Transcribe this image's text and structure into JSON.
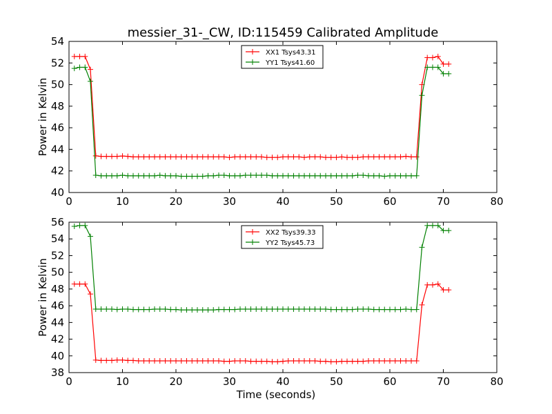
{
  "title": "messier_31-_CW, ID:115459 Calibrated Amplitude",
  "colors": {
    "red": "#ff0000",
    "green": "#008000",
    "axis": "#000000"
  },
  "chart_data": [
    {
      "type": "line",
      "ylabel": "Power in Kelvin",
      "xlabel": "",
      "xlim": [
        0,
        80
      ],
      "ylim": [
        40,
        54
      ],
      "x_ticks": [
        0,
        10,
        20,
        30,
        40,
        50,
        60,
        70,
        80
      ],
      "y_ticks": [
        40,
        42,
        44,
        46,
        48,
        50,
        52,
        54
      ],
      "grid": false,
      "legend_position": "top-center",
      "x": [
        1,
        2,
        3,
        4,
        5,
        6,
        7,
        8,
        9,
        10,
        11,
        12,
        13,
        14,
        15,
        16,
        17,
        18,
        19,
        20,
        21,
        22,
        23,
        24,
        25,
        26,
        27,
        28,
        29,
        30,
        31,
        32,
        33,
        34,
        35,
        36,
        37,
        38,
        39,
        40,
        41,
        42,
        43,
        44,
        45,
        46,
        47,
        48,
        49,
        50,
        51,
        52,
        53,
        54,
        55,
        56,
        57,
        58,
        59,
        60,
        61,
        62,
        63,
        64,
        65,
        66,
        67,
        68,
        69,
        70,
        71
      ],
      "series": [
        {
          "name": "XX1 Tsys43.31",
          "color": "#ff0000",
          "values": [
            52.6,
            52.6,
            52.6,
            51.4,
            43.4,
            43.35,
            43.35,
            43.35,
            43.35,
            43.38,
            43.35,
            43.3,
            43.3,
            43.3,
            43.3,
            43.3,
            43.3,
            43.3,
            43.3,
            43.3,
            43.3,
            43.3,
            43.3,
            43.3,
            43.3,
            43.3,
            43.3,
            43.3,
            43.3,
            43.25,
            43.3,
            43.3,
            43.3,
            43.3,
            43.3,
            43.3,
            43.25,
            43.25,
            43.25,
            43.3,
            43.3,
            43.3,
            43.3,
            43.25,
            43.3,
            43.3,
            43.3,
            43.25,
            43.25,
            43.25,
            43.3,
            43.25,
            43.25,
            43.25,
            43.3,
            43.3,
            43.3,
            43.3,
            43.3,
            43.3,
            43.3,
            43.3,
            43.35,
            43.3,
            43.3,
            50.0,
            52.5,
            52.5,
            52.6,
            51.9,
            51.9
          ]
        },
        {
          "name": "YY1 Tsys41.60",
          "color": "#008000",
          "values": [
            51.5,
            51.6,
            51.6,
            50.3,
            41.6,
            41.55,
            41.55,
            41.55,
            41.55,
            41.6,
            41.55,
            41.55,
            41.55,
            41.55,
            41.55,
            41.55,
            41.6,
            41.55,
            41.55,
            41.55,
            41.5,
            41.5,
            41.5,
            41.5,
            41.5,
            41.55,
            41.55,
            41.6,
            41.6,
            41.55,
            41.55,
            41.55,
            41.6,
            41.6,
            41.6,
            41.6,
            41.6,
            41.55,
            41.55,
            41.55,
            41.55,
            41.55,
            41.55,
            41.55,
            41.55,
            41.55,
            41.55,
            41.55,
            41.55,
            41.55,
            41.55,
            41.55,
            41.55,
            41.6,
            41.6,
            41.55,
            41.55,
            41.55,
            41.5,
            41.55,
            41.55,
            41.55,
            41.55,
            41.55,
            41.55,
            49.0,
            51.6,
            51.6,
            51.6,
            51.0,
            51.0
          ]
        }
      ]
    },
    {
      "type": "line",
      "ylabel": "Power in Kelvin",
      "xlabel": "Time (seconds)",
      "xlim": [
        0,
        80
      ],
      "ylim": [
        38,
        56
      ],
      "x_ticks": [
        0,
        10,
        20,
        30,
        40,
        50,
        60,
        70,
        80
      ],
      "y_ticks": [
        38,
        40,
        42,
        44,
        46,
        48,
        50,
        52,
        54,
        56
      ],
      "grid": false,
      "legend_position": "top-center",
      "x": [
        1,
        2,
        3,
        4,
        5,
        6,
        7,
        8,
        9,
        10,
        11,
        12,
        13,
        14,
        15,
        16,
        17,
        18,
        19,
        20,
        21,
        22,
        23,
        24,
        25,
        26,
        27,
        28,
        29,
        30,
        31,
        32,
        33,
        34,
        35,
        36,
        37,
        38,
        39,
        40,
        41,
        42,
        43,
        44,
        45,
        46,
        47,
        48,
        49,
        50,
        51,
        52,
        53,
        54,
        55,
        56,
        57,
        58,
        59,
        60,
        61,
        62,
        63,
        64,
        65,
        66,
        67,
        68,
        69,
        70,
        71
      ],
      "series": [
        {
          "name": "XX2 Tsys39.33",
          "color": "#ff0000",
          "values": [
            48.6,
            48.6,
            48.6,
            47.4,
            39.5,
            39.45,
            39.45,
            39.45,
            39.5,
            39.5,
            39.45,
            39.45,
            39.4,
            39.4,
            39.4,
            39.4,
            39.4,
            39.4,
            39.4,
            39.4,
            39.4,
            39.4,
            39.4,
            39.4,
            39.4,
            39.4,
            39.4,
            39.4,
            39.35,
            39.35,
            39.4,
            39.4,
            39.4,
            39.35,
            39.35,
            39.35,
            39.35,
            39.3,
            39.3,
            39.35,
            39.4,
            39.4,
            39.4,
            39.4,
            39.4,
            39.4,
            39.35,
            39.35,
            39.3,
            39.3,
            39.35,
            39.35,
            39.35,
            39.35,
            39.35,
            39.4,
            39.4,
            39.4,
            39.4,
            39.4,
            39.4,
            39.4,
            39.4,
            39.4,
            39.4,
            46.1,
            48.5,
            48.5,
            48.6,
            47.9,
            47.9
          ]
        },
        {
          "name": "YY2 Tsys45.73",
          "color": "#008000",
          "values": [
            55.5,
            55.6,
            55.6,
            54.3,
            45.6,
            45.6,
            45.6,
            45.6,
            45.55,
            45.6,
            45.6,
            45.55,
            45.55,
            45.55,
            45.55,
            45.6,
            45.6,
            45.6,
            45.55,
            45.55,
            45.5,
            45.5,
            45.5,
            45.5,
            45.5,
            45.5,
            45.5,
            45.55,
            45.55,
            45.55,
            45.55,
            45.6,
            45.6,
            45.6,
            45.6,
            45.6,
            45.6,
            45.6,
            45.6,
            45.6,
            45.6,
            45.6,
            45.6,
            45.6,
            45.6,
            45.6,
            45.6,
            45.6,
            45.55,
            45.55,
            45.55,
            45.55,
            45.55,
            45.6,
            45.6,
            45.6,
            45.55,
            45.55,
            45.55,
            45.55,
            45.55,
            45.55,
            45.6,
            45.55,
            45.55,
            53.0,
            55.6,
            55.6,
            55.6,
            55.0,
            55.0
          ]
        }
      ]
    }
  ]
}
